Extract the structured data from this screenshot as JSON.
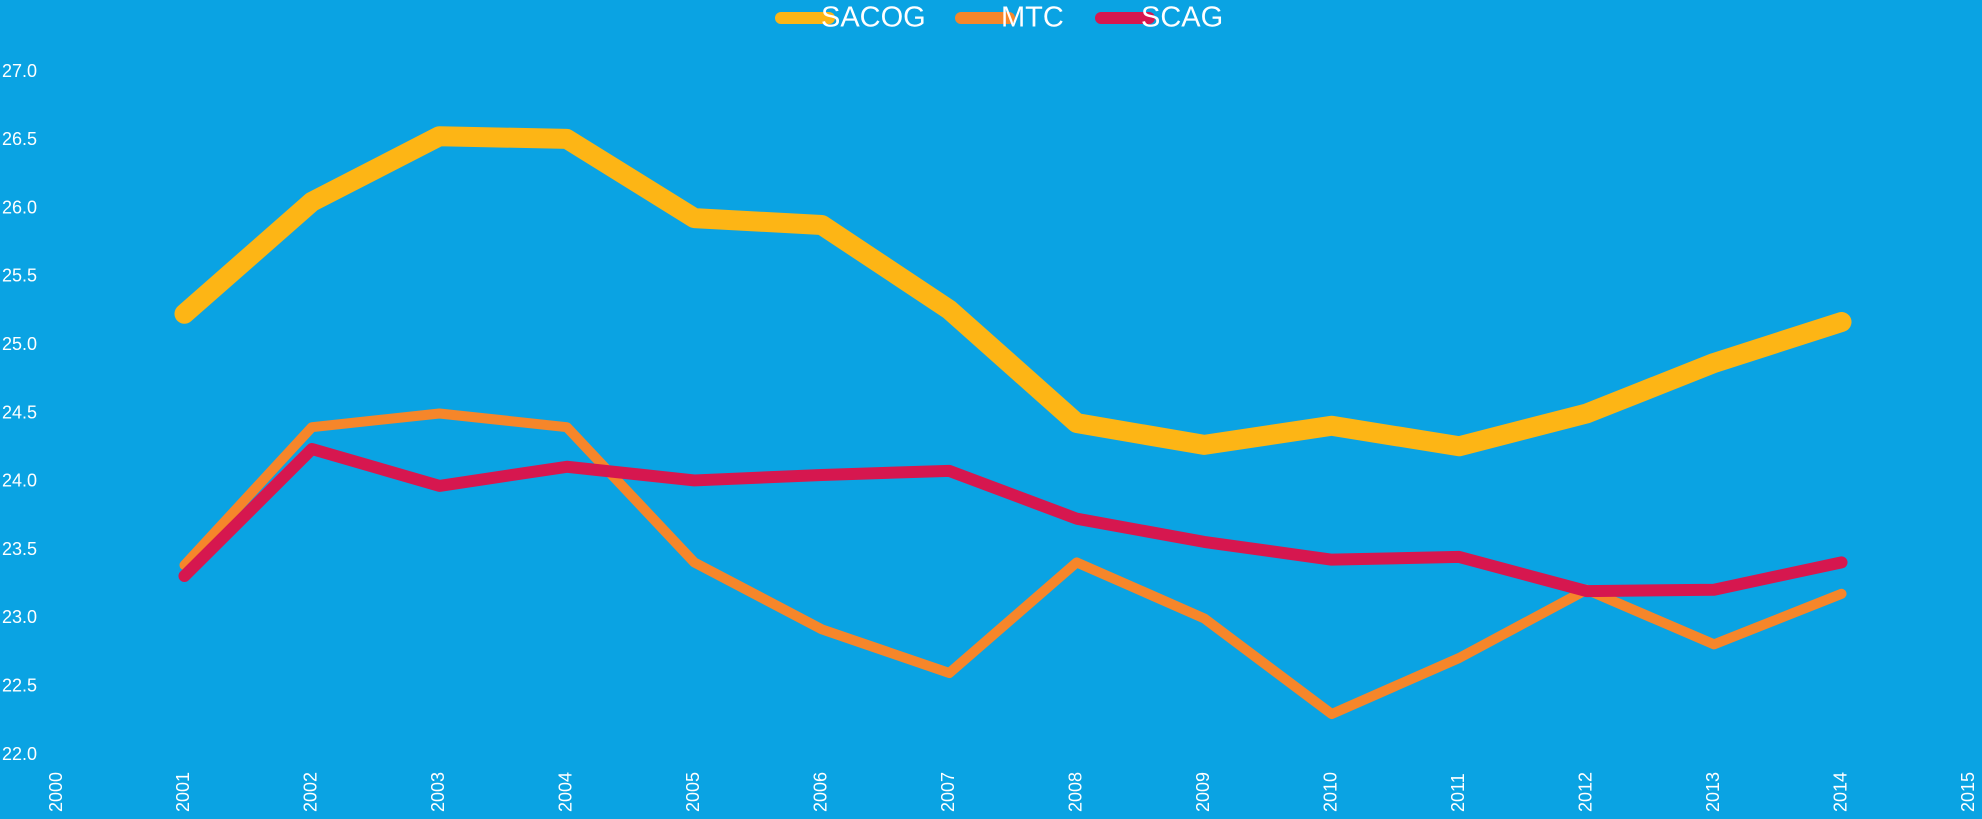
{
  "chart_data": {
    "type": "line",
    "x": [
      2001,
      2002,
      2003,
      2004,
      2005,
      2006,
      2007,
      2008,
      2009,
      2010,
      2011,
      2012,
      2013,
      2014
    ],
    "series": [
      {
        "name": "SACOG",
        "color": "#fdb515",
        "values": [
          25.23,
          26.05,
          26.53,
          26.51,
          25.93,
          25.88,
          25.26,
          24.43,
          24.27,
          24.41,
          24.26,
          24.5,
          24.87,
          25.17
        ]
      },
      {
        "name": "MTC",
        "color": "#f6862a",
        "values": [
          23.39,
          24.4,
          24.5,
          24.4,
          23.41,
          22.92,
          22.6,
          23.41,
          23.0,
          22.3,
          22.71,
          23.21,
          22.81,
          23.18
        ]
      },
      {
        "name": "SCAG",
        "color": "#d6174f",
        "values": [
          23.31,
          24.24,
          23.97,
          24.11,
          24.01,
          24.05,
          24.08,
          23.73,
          23.56,
          23.43,
          23.45,
          23.2,
          23.21,
          23.41
        ]
      }
    ],
    "xlim": [
      2000,
      2015
    ],
    "xticks": [
      2000,
      2001,
      2002,
      2003,
      2004,
      2005,
      2006,
      2007,
      2008,
      2009,
      2010,
      2011,
      2012,
      2013,
      2014,
      2015
    ],
    "ylim": [
      22,
      27
    ],
    "yticks": [
      {
        "value": 22,
        "label": "22.0"
      },
      {
        "value": 22.5,
        "label": "22.5"
      },
      {
        "value": 23,
        "label": "23.0"
      },
      {
        "value": 23.5,
        "label": "23.5"
      },
      {
        "value": 24,
        "label": "24.0"
      },
      {
        "value": 24.5,
        "label": "24.5"
      },
      {
        "value": 25,
        "label": "25.0"
      },
      {
        "value": 25.5,
        "label": "25.5"
      },
      {
        "value": 26,
        "label": "26.0"
      },
      {
        "value": 26.5,
        "label": "26.5"
      },
      {
        "value": 27,
        "label": "27.0"
      }
    ],
    "legend": "top"
  }
}
